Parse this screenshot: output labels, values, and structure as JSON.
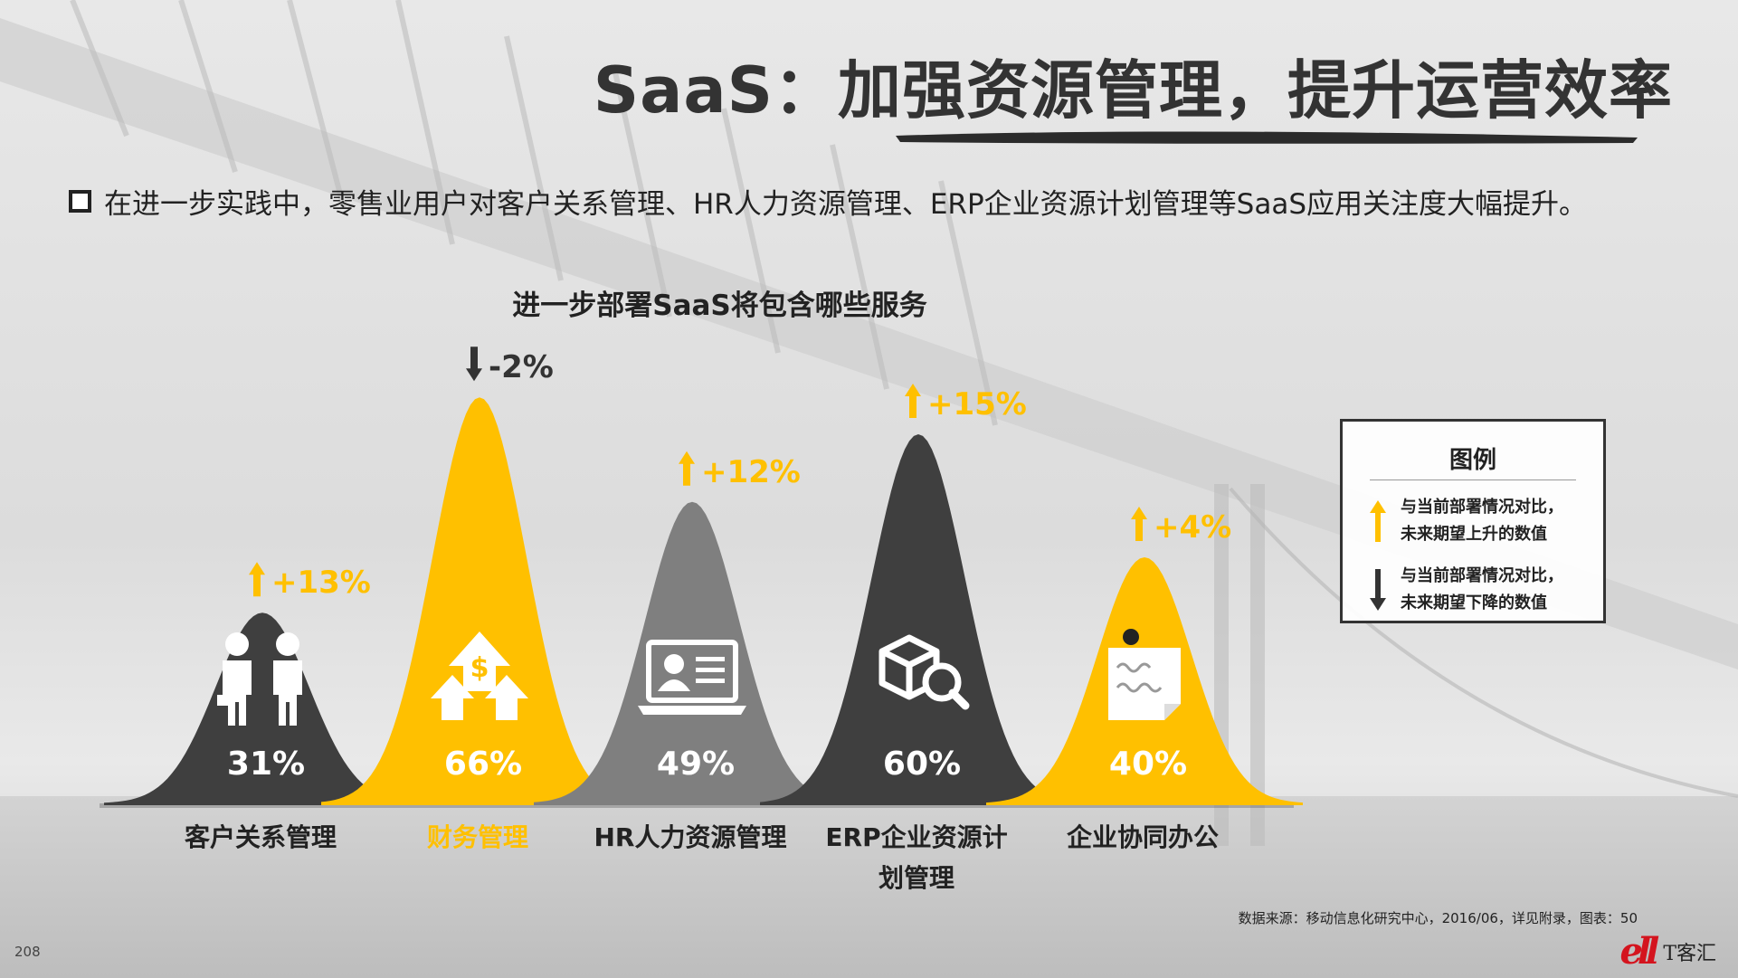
{
  "slide": {
    "title": "SaaS：加强资源管理，提升运营效率",
    "bullet": "在进一步实践中，零售业用户对客户关系管理、HR人力资源管理、ERP企业资源计划管理等SaaS应用关注度大幅提升。",
    "source": "数据来源：移动信息化研究中心，2016/06，详见附录，图表：50",
    "page_number": "208",
    "brand": "T客汇"
  },
  "chart_data": {
    "type": "bar",
    "title": "进一步部署SaaS将包含哪些服务",
    "categories": [
      "客户关系管理",
      "财务管理",
      "HR人力资源管理",
      "ERP企业资源计划管理",
      "企业协同办公"
    ],
    "category_lines": [
      [
        "客户关系管理"
      ],
      [
        "财务管理"
      ],
      [
        "HR人力资源管理"
      ],
      [
        "ERP企业资源计",
        "划管理"
      ],
      [
        "企业协同办公"
      ]
    ],
    "values": [
      31,
      66,
      49,
      60,
      40
    ],
    "value_labels": [
      "31%",
      "66%",
      "49%",
      "60%",
      "40%"
    ],
    "changes": [
      13,
      -2,
      12,
      15,
      4
    ],
    "change_labels": [
      "+13%",
      "-2%",
      "+12%",
      "+15%",
      "+4%"
    ],
    "direction": [
      "up",
      "down",
      "up",
      "up",
      "up"
    ],
    "fill_colors": [
      "#3f3f3f",
      "#ffc000",
      "#7f7f7f",
      "#3f3f3f",
      "#ffc000"
    ],
    "icons": [
      "people-icon",
      "money-growth-icon",
      "profile-laptop-icon",
      "box-search-icon",
      "sticky-note-icon"
    ],
    "highlight_category": 1,
    "colors": {
      "up": "#ffc000",
      "down": "#333333",
      "highlight_text": "#ffc000"
    },
    "legend": {
      "title": "图例",
      "position": "right",
      "items": [
        {
          "arrow": "up",
          "color": "#ffc000",
          "lines": [
            "与当前部署情况对比，",
            "未来期望上升的数值"
          ]
        },
        {
          "arrow": "down",
          "color": "#333333",
          "lines": [
            "与当前部署情况对比，",
            "未来期望下降的数值"
          ]
        }
      ]
    }
  }
}
